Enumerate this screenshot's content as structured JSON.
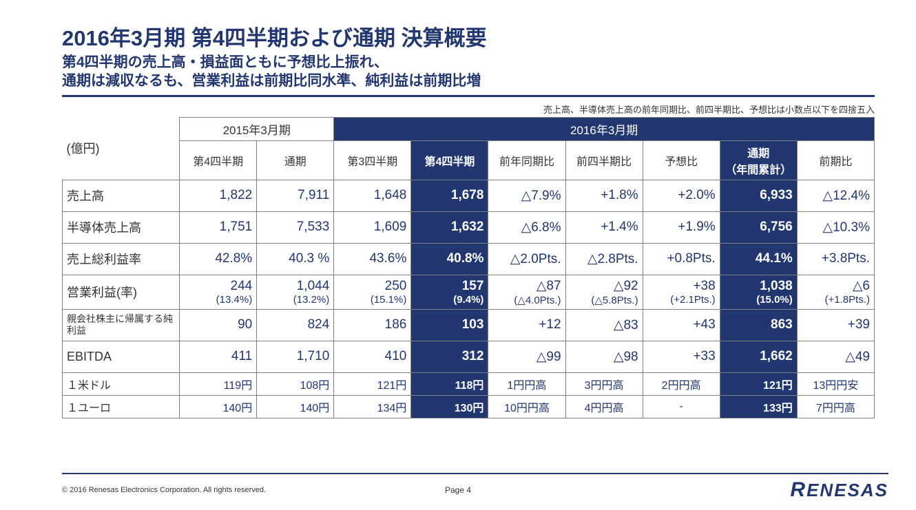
{
  "colors": {
    "brand": "#22366f",
    "border": "#808080",
    "text": "#333333",
    "white": "#ffffff"
  },
  "title": "2016年3月期 第4四半期および通期 決算概要",
  "subtitle1": "第4四半期の売上高・損益面ともに予想比上振れ、",
  "subtitle2": "通期は減収なるも、営業利益は前期比同水準、純利益は前期比増",
  "note": "売上高、半導体売上高の前年同期比、前四半期比、予想比は小数点以下を四捨五入",
  "unit": "(億円)",
  "head": {
    "g1": "2015年3月期",
    "g2": "2016年3月期",
    "c1": "第4四半期",
    "c2": "通期",
    "c3": "第3四半期",
    "c4": "第4四半期",
    "c5": "前年同期比",
    "c6": "前四半期比",
    "c7": "予想比",
    "c8a": "通期",
    "c8b": "（年間累計）",
    "c9": "前期比"
  },
  "rows": [
    {
      "lbl": "売上高",
      "v": [
        "1,822",
        "7,911",
        "1,648",
        "1,678",
        "△7.9%",
        "+1.8%",
        "+2.0%",
        "6,933",
        "△12.4%"
      ]
    },
    {
      "lbl": "半導体売上高",
      "v": [
        "1,751",
        "7,533",
        "1,609",
        "1,632",
        "△6.8%",
        "+1.4%",
        "+1.9%",
        "6,756",
        "△10.3%"
      ]
    },
    {
      "lbl": "売上総利益率",
      "v": [
        "42.8%",
        "40.3 %",
        "43.6%",
        "40.8%",
        "△2.0Pts.",
        "△2.8Pts.",
        "+0.8Pts.",
        "44.1%",
        "+3.8Pts."
      ]
    },
    {
      "lbl": "営業利益(率)",
      "v": [
        "244",
        "1,044",
        "250",
        "157",
        "△87",
        "△92",
        "+38",
        "1,038",
        "△6"
      ],
      "v2": [
        "(13.4%)",
        "(13.2%)",
        "(15.1%)",
        "(9.4%)",
        "(△4.0Pts.)",
        "(△5.8Pts.)",
        "(+2.1Pts.)",
        "(15.0%)",
        "(+1.8Pts.)"
      ]
    },
    {
      "lbl": "親会社株主に帰属する純利益",
      "small": true,
      "v": [
        "90",
        "824",
        "186",
        "103",
        "+12",
        "△83",
        "+43",
        "863",
        "+39"
      ]
    },
    {
      "lbl": "EBITDA",
      "v": [
        "411",
        "1,710",
        "410",
        "312",
        "△99",
        "△98",
        "+33",
        "1,662",
        "△49"
      ]
    },
    {
      "lbl": "１米ドル",
      "thin": true,
      "v": [
        "119円",
        "108円",
        "121円",
        "118円",
        "1円円高",
        "3円円高",
        "2円円高",
        "121円",
        "13円円安"
      ]
    },
    {
      "lbl": "１ユーロ",
      "thin": true,
      "v": [
        "140円",
        "140円",
        "134円",
        "130円",
        "10円円高",
        "4円円高",
        "-",
        "133円",
        "7円円高"
      ]
    }
  ],
  "emphCols": [
    3,
    7
  ],
  "footer": {
    "copyright": "© 2016 Renesas Electronics Corporation. All rights reserved.",
    "page": "Page 4",
    "logo": "RENESAS"
  }
}
